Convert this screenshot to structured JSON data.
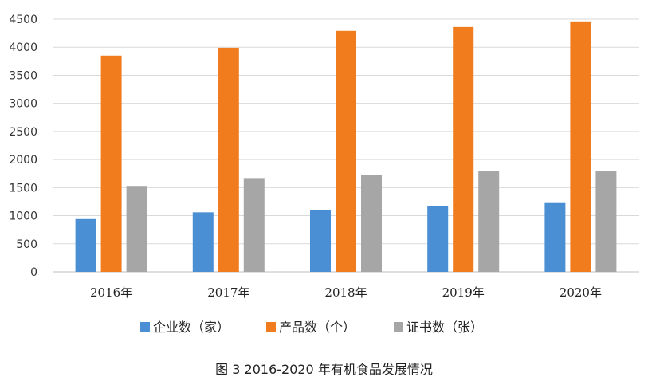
{
  "chart_data": {
    "type": "bar",
    "categories": [
      "2016年",
      "2017年",
      "2018年",
      "2019年",
      "2020年"
    ],
    "series": [
      {
        "name": "企业数（家）",
        "values": [
          940,
          1060,
          1100,
          1175,
          1225
        ],
        "color": "#4a8fd3"
      },
      {
        "name": "产品数（个）",
        "values": [
          3850,
          3990,
          4290,
          4360,
          4460
        ],
        "color": "#f07c1e"
      },
      {
        "name": "证书数（张）",
        "values": [
          1530,
          1670,
          1720,
          1790,
          1790
        ],
        "color": "#a6a6a6"
      }
    ],
    "ylim": [
      0,
      4500
    ],
    "yticks": [
      0,
      500,
      1000,
      1500,
      2000,
      2500,
      3000,
      3500,
      4000,
      4500
    ],
    "grid": true,
    "legend_position": "bottom",
    "caption": "图 3 2016-2020 年有机食品发展情况"
  }
}
